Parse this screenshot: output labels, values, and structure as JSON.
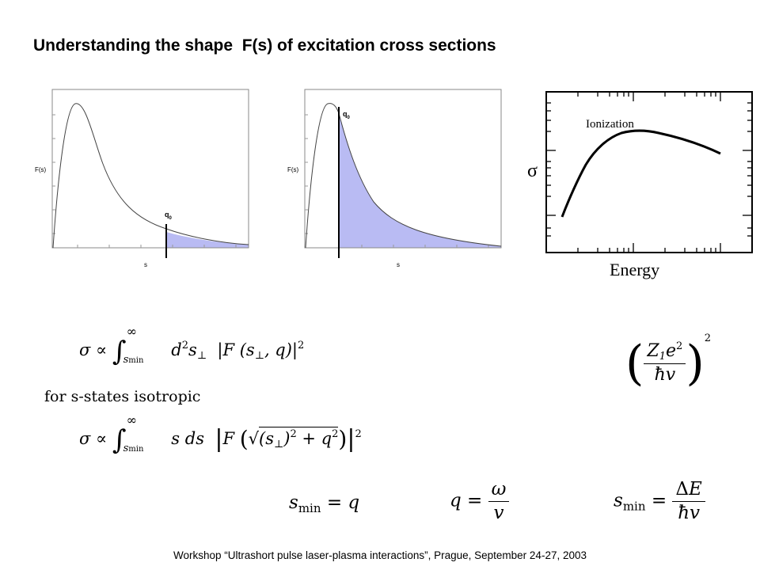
{
  "slide": {
    "title": "Understanding the shape  F(s) of excitation cross sections",
    "footer": "Workshop “Ultrashort pulse laser-plasma interactions”, Prague, September 24-27, 2003"
  },
  "plots": {
    "left": {
      "ylabel": "F(s)",
      "xlabel": "s",
      "marker": "q",
      "marker_sub": "0"
    },
    "middle": {
      "ylabel": "F(s)",
      "xlabel": "s",
      "marker": "q",
      "marker_sub": "0"
    },
    "right": {
      "ylabel": "σ",
      "xlabel": "Energy",
      "curve_label": "Ionization"
    }
  },
  "colors": {
    "fill": "#b9bbf3",
    "curve": "#444444"
  },
  "equations": {
    "for_text": "for s-states isotropic"
  }
}
